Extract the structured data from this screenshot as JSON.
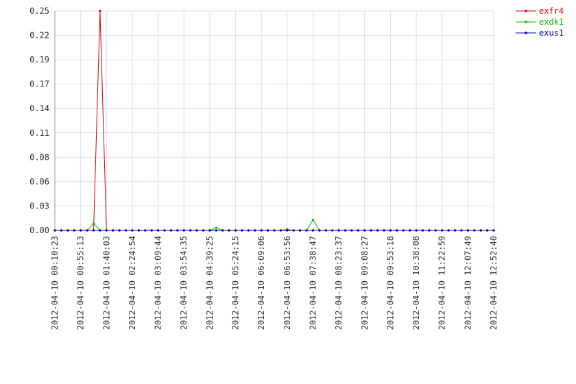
{
  "chart_data": {
    "type": "line",
    "categories": [
      "2012-04-10 00:10:23",
      null,
      null,
      null,
      "2012-04-10 00:55:13",
      null,
      null,
      null,
      "2012-04-10 01:40:03",
      null,
      null,
      null,
      "2012-04-10 02:24:54",
      null,
      null,
      null,
      "2012-04-10 03:09:44",
      null,
      null,
      null,
      "2012-04-10 03:54:35",
      null,
      null,
      null,
      "2012-04-10 04:39:25",
      null,
      null,
      null,
      "2012-04-10 05:24:15",
      null,
      null,
      null,
      "2012-04-10 06:09:06",
      null,
      null,
      null,
      "2012-04-10 06:53:56",
      null,
      null,
      null,
      "2012-04-10 07:38:47",
      null,
      null,
      null,
      "2012-04-10 08:23:37",
      null,
      null,
      null,
      "2012-04-10 09:08:27",
      null,
      null,
      null,
      "2012-04-10 09:53:18",
      null,
      null,
      null,
      "2012-04-10 10:38:08",
      null,
      null,
      null,
      "2012-04-10 11:22:59",
      null,
      null,
      null,
      "2012-04-10 12:07:49",
      null,
      null,
      null,
      "2012-04-10 12:52:40"
    ],
    "series": [
      {
        "name": "exfr4",
        "color": "#cc0000",
        "values": [
          0,
          0,
          0,
          0,
          0,
          0,
          0,
          0.25,
          0,
          0,
          0,
          0,
          0,
          0,
          0,
          0,
          0,
          0,
          0,
          0,
          0,
          0,
          0,
          0,
          0,
          0,
          0,
          0,
          0,
          0,
          0,
          0,
          0,
          0,
          0,
          0,
          0.001,
          0,
          0,
          0,
          0,
          0,
          0,
          0,
          0,
          0,
          0,
          0,
          0,
          0,
          0,
          0,
          0,
          0,
          0,
          0,
          0,
          0,
          0,
          0,
          0,
          0,
          0,
          0,
          0,
          0,
          0,
          0,
          0
        ]
      },
      {
        "name": "exdk1",
        "color": "#00bb00",
        "values": [
          0,
          0,
          0,
          0,
          0,
          0,
          0.008,
          0,
          0,
          0,
          0,
          0,
          0,
          0,
          0,
          0,
          0,
          0,
          0,
          0,
          0,
          0,
          0,
          0,
          0,
          0.003,
          0,
          0,
          0,
          0,
          0,
          0,
          0,
          0,
          0,
          0,
          0,
          0,
          0,
          0,
          0.012,
          0,
          0,
          0,
          0,
          0,
          0,
          0,
          0,
          0,
          0,
          0,
          0,
          0,
          0,
          0,
          0,
          0,
          0,
          0,
          0,
          0,
          0,
          0,
          0,
          0,
          0,
          0,
          0
        ]
      },
      {
        "name": "exus1",
        "color": "#0000aa",
        "values": [
          0,
          0,
          0,
          0,
          0,
          0,
          0,
          0,
          0,
          0,
          0,
          0,
          0,
          0,
          0,
          0,
          0,
          0,
          0,
          0,
          0,
          0,
          0,
          0,
          0,
          0,
          0,
          0,
          0,
          0,
          0,
          0,
          0,
          0,
          0,
          0,
          0,
          0,
          0,
          0,
          0,
          0,
          0,
          0,
          0,
          0,
          0,
          0,
          0,
          0,
          0,
          0,
          0,
          0,
          0,
          0,
          0,
          0,
          0,
          0,
          0,
          0,
          0,
          0,
          0,
          0,
          0,
          0,
          0
        ]
      }
    ],
    "ylim": [
      0,
      0.25
    ],
    "yticks": [
      {
        "value": 0,
        "label": "0.00"
      },
      {
        "value": 0.02778,
        "label": "0.03"
      },
      {
        "value": 0.05556,
        "label": "0.06"
      },
      {
        "value": 0.08333,
        "label": "0.08"
      },
      {
        "value": 0.11111,
        "label": "0.11"
      },
      {
        "value": 0.13889,
        "label": "0.14"
      },
      {
        "value": 0.16667,
        "label": "0.17"
      },
      {
        "value": 0.19444,
        "label": "0.19"
      },
      {
        "value": 0.22222,
        "label": "0.22"
      },
      0.25
    ],
    "grid": true,
    "legend": "top-right"
  }
}
